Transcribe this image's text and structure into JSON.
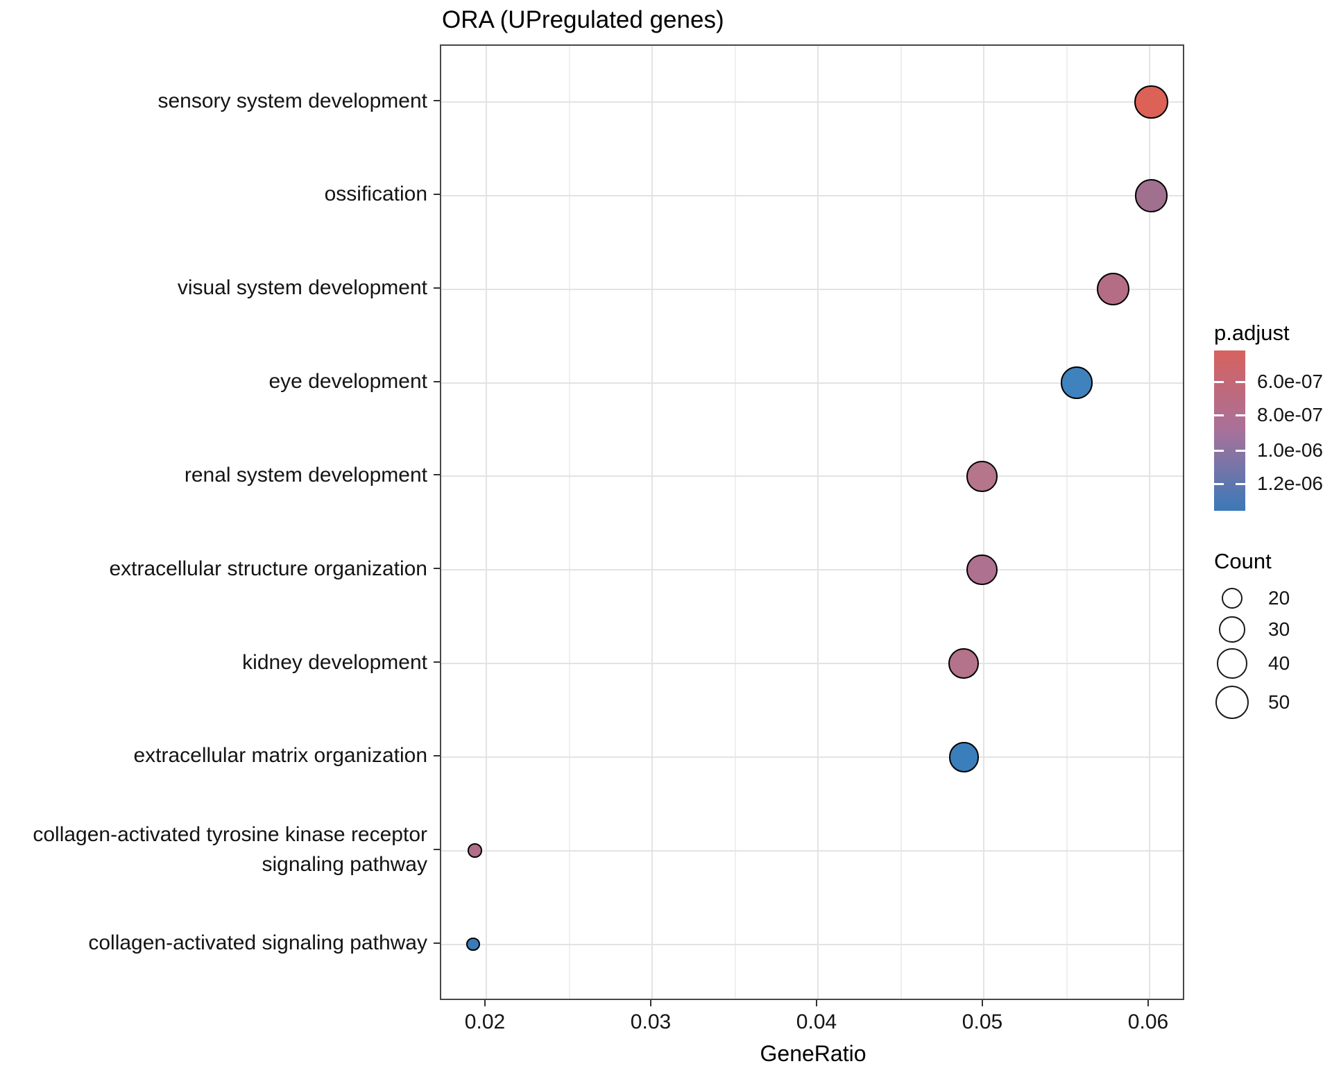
{
  "title": "ORA (UPregulated genes)",
  "x_axis": {
    "label": "GeneRatio",
    "tick_labels": [
      "0.02",
      "0.03",
      "0.04",
      "0.05",
      "0.06"
    ],
    "tick_values": [
      0.02,
      0.03,
      0.04,
      0.05,
      0.06
    ],
    "minor_tick_values": [
      0.025,
      0.035,
      0.045,
      0.055
    ]
  },
  "legend": {
    "p_adjust": {
      "title": "p.adjust",
      "tick_labels": [
        "6.0e-07",
        "8.0e-07",
        "1.0e-06",
        "1.2e-06"
      ],
      "gradient_top_color": "#d6625e",
      "gradient_mid_color": "#a8719a",
      "gradient_bottom_color": "#3a79b8"
    },
    "count": {
      "title": "Count",
      "entries": [
        "20",
        "30",
        "40",
        "50"
      ],
      "entry_values": [
        20,
        30,
        40,
        50
      ]
    }
  },
  "chart_data": {
    "type": "scatter",
    "title": "ORA (UPregulated genes)",
    "xlabel": "GeneRatio",
    "ylabel": "",
    "xlim": [
      0.017,
      0.062
    ],
    "grid": "major x/y + minor x, light grey on white, full panel border",
    "legend_position": "right",
    "categories": [
      "sensory system development",
      "ossification",
      "visual system development",
      "eye development",
      "renal system development",
      "extracellular structure organization",
      "kidney development",
      "extracellular matrix organization",
      "collagen-activated tyrosine kinase receptor signaling pathway",
      "collagen-activated signaling pathway"
    ],
    "points": [
      {
        "label": "sensory system development",
        "gene_ratio": 0.0601,
        "count": 50,
        "p_adjust": "4.5e-07",
        "color": "#dc6156"
      },
      {
        "label": "ossification",
        "gene_ratio": 0.0601,
        "count": 48,
        "p_adjust": "9.2e-07",
        "color": "#a1708f"
      },
      {
        "label": "visual system development",
        "gene_ratio": 0.0578,
        "count": 47,
        "p_adjust": "8.3e-07",
        "color": "#b56d86"
      },
      {
        "label": "eye development",
        "gene_ratio": 0.0556,
        "count": 46,
        "p_adjust": "1.30e-06",
        "color": "#3f82bd"
      },
      {
        "label": "renal system development",
        "gene_ratio": 0.0499,
        "count": 42,
        "p_adjust": "8.4e-07",
        "color": "#b5758b"
      },
      {
        "label": "extracellular structure organization",
        "gene_ratio": 0.0499,
        "count": 42,
        "p_adjust": "8.8e-07",
        "color": "#ae7190"
      },
      {
        "label": "kidney development",
        "gene_ratio": 0.0488,
        "count": 41,
        "p_adjust": "8.4e-07",
        "color": "#b4738a"
      },
      {
        "label": "extracellular matrix organization",
        "gene_ratio": 0.0488,
        "count": 40,
        "p_adjust": "1.33e-06",
        "color": "#3b7ebc"
      },
      {
        "label": "collagen-activated tyrosine kinase receptor signaling pathway",
        "gene_ratio": 0.0193,
        "count": 10,
        "p_adjust": "8.5e-07",
        "color": "#b06f89"
      },
      {
        "label": "collagen-activated signaling pathway",
        "gene_ratio": 0.0192,
        "count": 9,
        "p_adjust": "1.30e-06",
        "color": "#3a7cba"
      }
    ]
  }
}
